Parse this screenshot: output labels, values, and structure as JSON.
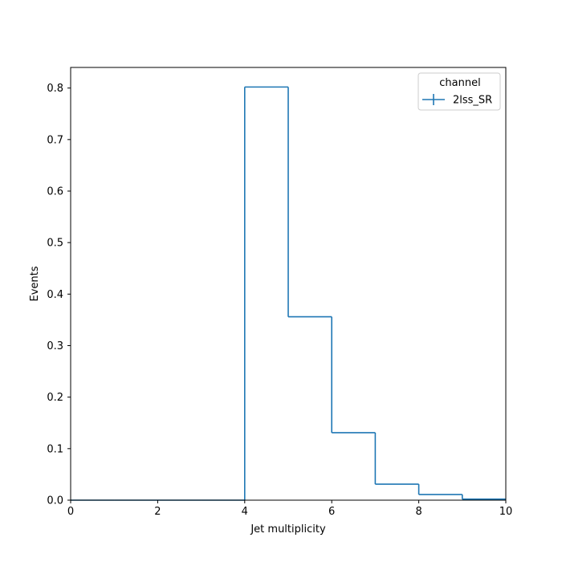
{
  "chart_data": {
    "type": "histogram-step",
    "title": "",
    "xlabel": "Jet multiplicity",
    "ylabel": "Events",
    "xlim": [
      0,
      10
    ],
    "ylim": [
      0,
      0.84
    ],
    "bin_edges": [
      0,
      1,
      2,
      3,
      4,
      5,
      6,
      7,
      8,
      9,
      10
    ],
    "series": [
      {
        "name": "2lss_SR",
        "color": "#1f77b4",
        "values": [
          0.0,
          0.0,
          0.0,
          0.0,
          0.802,
          0.356,
          0.131,
          0.031,
          0.011,
          0.002
        ]
      }
    ],
    "xticks": [
      0,
      2,
      4,
      6,
      8,
      10
    ],
    "xtick_labels": [
      "0",
      "2",
      "4",
      "6",
      "8",
      "10"
    ],
    "yticks": [
      0.0,
      0.1,
      0.2,
      0.3,
      0.4,
      0.5,
      0.6,
      0.7,
      0.8
    ],
    "ytick_labels": [
      "0.0",
      "0.1",
      "0.2",
      "0.3",
      "0.4",
      "0.5",
      "0.6",
      "0.7",
      "0.8"
    ],
    "legend": {
      "title": "channel",
      "placement": "top-right",
      "entries": [
        "2lss_SR"
      ]
    },
    "grid": false
  }
}
